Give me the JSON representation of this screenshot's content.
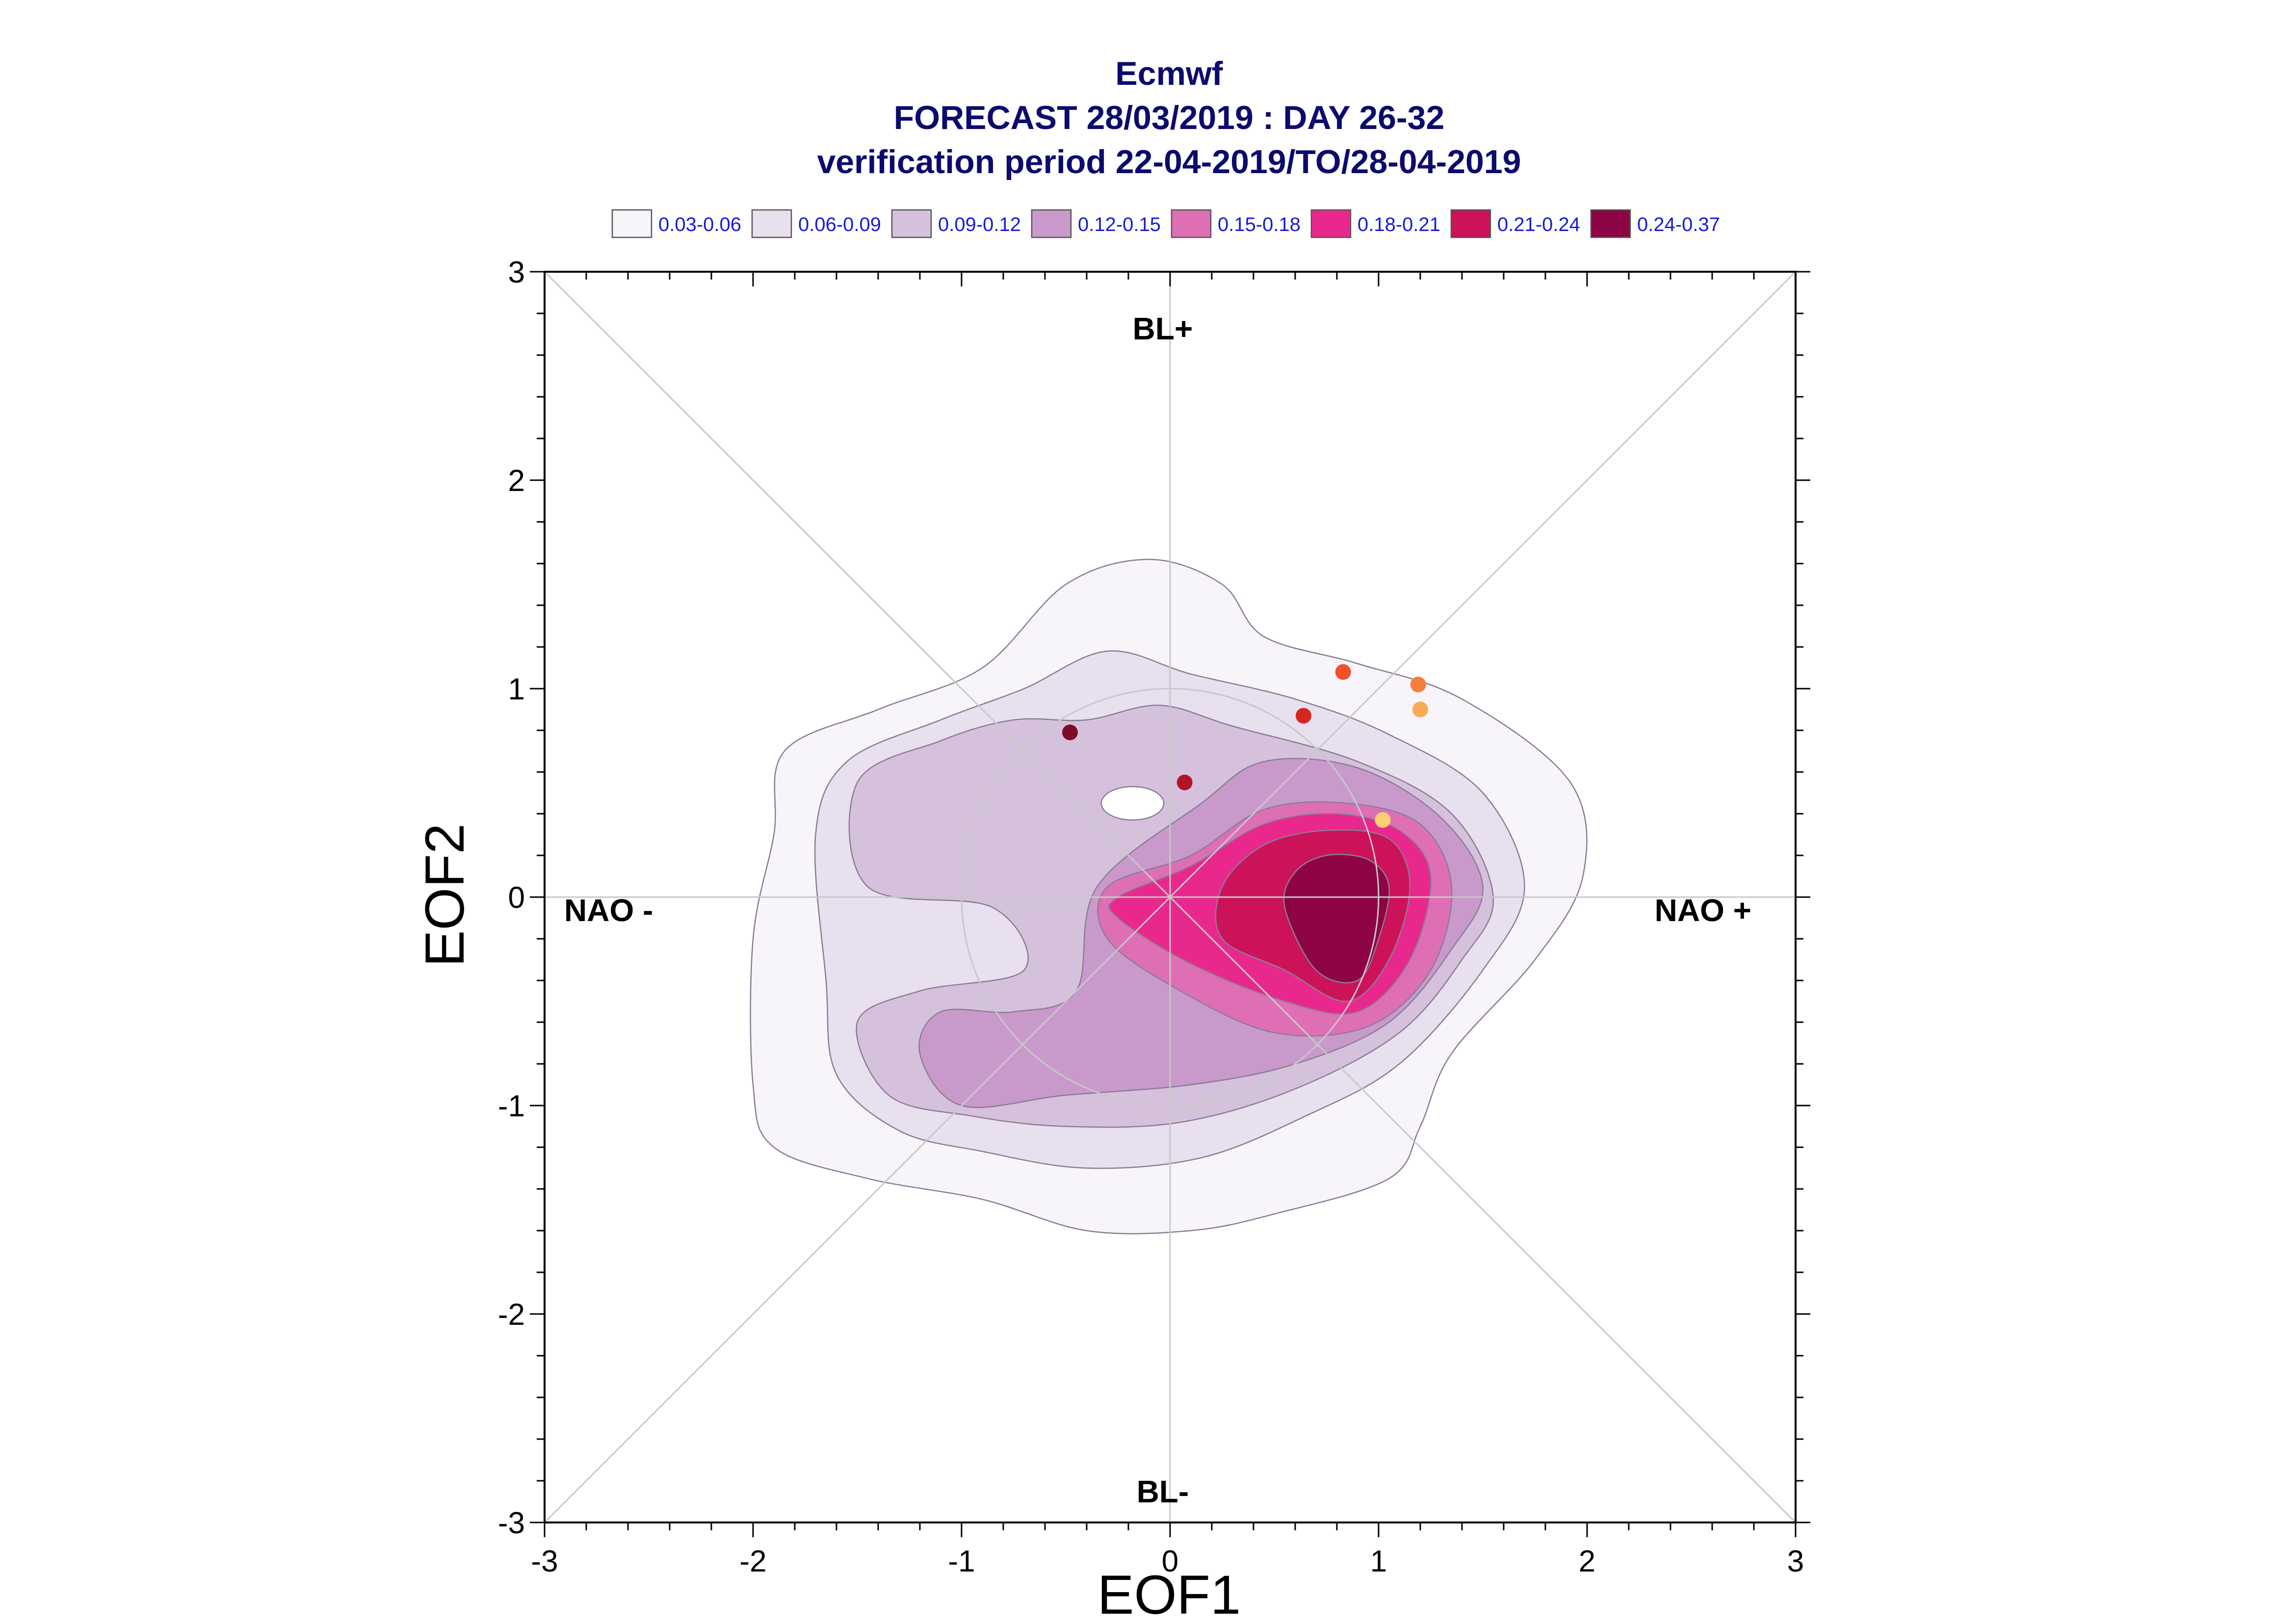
{
  "chart_data": {
    "type": "heatmap",
    "title": "Ecmwf",
    "subtitle_1": "FORECAST 28/03/2019 : DAY 26-32",
    "subtitle_2": "verification period 22-04-2019/TO/28-04-2019",
    "xlabel": "EOF1",
    "ylabel": "EOF2",
    "xlim": [
      -3,
      3
    ],
    "ylim": [
      -3,
      3
    ],
    "xticks": [
      "-3",
      "-2",
      "-1",
      "0",
      "1",
      "2",
      "3"
    ],
    "yticks": [
      "-3",
      "-2",
      "-1",
      "0",
      "1",
      "2",
      "3"
    ],
    "grid": false,
    "legend_position": "top",
    "legend": [
      {
        "label": "0.03-0.06",
        "color": "#f7f5fa"
      },
      {
        "label": "0.06-0.09",
        "color": "#e8e0ef"
      },
      {
        "label": "0.09-0.12",
        "color": "#d6c1dd"
      },
      {
        "label": "0.12-0.15",
        "color": "#c999cc"
      },
      {
        "label": "0.15-0.18",
        "color": "#df6fb4"
      },
      {
        "label": "0.18-0.21",
        "color": "#e9288e"
      },
      {
        "label": "0.21-0.24",
        "color": "#cc1259"
      },
      {
        "label": "0.24-0.37",
        "color": "#8e0444"
      }
    ],
    "regime_labels": {
      "top": "BL+",
      "bottom": "BL-",
      "left": "NAO -",
      "right": "NAO +"
    },
    "contours": [
      {
        "level": "0.03-0.06",
        "color": "#f7f5fa",
        "points": [
          [
            -2.0,
            -0.9
          ],
          [
            -1.9,
            -1.2
          ],
          [
            -1.45,
            -1.35
          ],
          [
            -0.9,
            -1.45
          ],
          [
            -0.4,
            -1.6
          ],
          [
            0.1,
            -1.6
          ],
          [
            0.5,
            -1.52
          ],
          [
            1.05,
            -1.35
          ],
          [
            1.2,
            -1.1
          ],
          [
            1.35,
            -0.75
          ],
          [
            1.75,
            -0.3
          ],
          [
            1.98,
            0.1
          ],
          [
            1.92,
            0.55
          ],
          [
            1.4,
            0.95
          ],
          [
            0.9,
            1.12
          ],
          [
            0.45,
            1.25
          ],
          [
            0.25,
            1.5
          ],
          [
            -0.1,
            1.62
          ],
          [
            -0.5,
            1.5
          ],
          [
            -0.9,
            1.1
          ],
          [
            -1.4,
            0.9
          ],
          [
            -1.85,
            0.7
          ],
          [
            -1.9,
            0.3
          ],
          [
            -2.0,
            -0.2
          ]
        ]
      },
      {
        "level": "0.06-0.09",
        "color": "#e8e0ef",
        "points": [
          [
            -1.65,
            -0.4
          ],
          [
            -1.6,
            -0.85
          ],
          [
            -1.3,
            -1.12
          ],
          [
            -0.9,
            -1.22
          ],
          [
            -0.4,
            -1.3
          ],
          [
            0.15,
            -1.25
          ],
          [
            0.65,
            -1.05
          ],
          [
            1.1,
            -0.8
          ],
          [
            1.5,
            -0.35
          ],
          [
            1.7,
            0.05
          ],
          [
            1.5,
            0.5
          ],
          [
            1.05,
            0.78
          ],
          [
            0.6,
            0.95
          ],
          [
            0.1,
            1.07
          ],
          [
            -0.3,
            1.18
          ],
          [
            -0.7,
            1.0
          ],
          [
            -1.1,
            0.85
          ],
          [
            -1.55,
            0.65
          ],
          [
            -1.7,
            0.3
          ]
        ]
      },
      {
        "level": "0.09-0.12",
        "color": "#d6c1dd",
        "points": [
          [
            -1.5,
            -0.6
          ],
          [
            -1.35,
            -0.95
          ],
          [
            -0.95,
            -1.05
          ],
          [
            -0.5,
            -1.1
          ],
          [
            0.05,
            -1.08
          ],
          [
            0.6,
            -0.92
          ],
          [
            1.1,
            -0.65
          ],
          [
            1.4,
            -0.3
          ],
          [
            1.55,
            0.0
          ],
          [
            1.35,
            0.4
          ],
          [
            0.9,
            0.65
          ],
          [
            0.3,
            0.82
          ],
          [
            -0.05,
            0.92
          ],
          [
            -0.4,
            0.85
          ],
          [
            -0.75,
            0.85
          ],
          [
            -1.1,
            0.75
          ],
          [
            -1.5,
            0.55
          ],
          [
            -1.45,
            0.05
          ],
          [
            -0.85,
            -0.05
          ],
          [
            -0.7,
            -0.35
          ],
          [
            -1.2,
            -0.45
          ]
        ]
      },
      {
        "level": "0.12-0.15",
        "color": "#c999cc",
        "points": [
          [
            -1.2,
            -0.75
          ],
          [
            -1.0,
            -1.0
          ],
          [
            -0.5,
            -0.95
          ],
          [
            0.1,
            -0.9
          ],
          [
            0.6,
            -0.8
          ],
          [
            1.05,
            -0.6
          ],
          [
            1.35,
            -0.25
          ],
          [
            1.5,
            0.05
          ],
          [
            1.3,
            0.38
          ],
          [
            0.9,
            0.62
          ],
          [
            0.45,
            0.65
          ],
          [
            0.15,
            0.45
          ],
          [
            -0.35,
            0.05
          ],
          [
            -0.45,
            -0.45
          ],
          [
            -0.75,
            -0.55
          ],
          [
            -1.1,
            -0.55
          ]
        ]
      },
      {
        "level": "0.15-0.18",
        "color": "#df6fb4",
        "points": [
          [
            -0.3,
            -0.2
          ],
          [
            0.05,
            -0.45
          ],
          [
            0.5,
            -0.65
          ],
          [
            0.95,
            -0.62
          ],
          [
            1.25,
            -0.35
          ],
          [
            1.35,
            0.05
          ],
          [
            1.2,
            0.35
          ],
          [
            0.85,
            0.45
          ],
          [
            0.45,
            0.42
          ],
          [
            0.1,
            0.2
          ],
          [
            -0.3,
            0.05
          ]
        ]
      },
      {
        "level": "0.18-0.21",
        "color": "#e9288e",
        "points": [
          [
            -0.25,
            -0.1
          ],
          [
            0.1,
            -0.32
          ],
          [
            0.55,
            -0.5
          ],
          [
            0.9,
            -0.55
          ],
          [
            1.15,
            -0.3
          ],
          [
            1.25,
            0.1
          ],
          [
            1.1,
            0.32
          ],
          [
            0.8,
            0.4
          ],
          [
            0.45,
            0.35
          ],
          [
            0.1,
            0.15
          ],
          [
            -0.25,
            0.0
          ]
        ]
      },
      {
        "level": "0.21-0.24",
        "color": "#cc1259",
        "points": [
          [
            0.25,
            -0.2
          ],
          [
            0.55,
            -0.35
          ],
          [
            0.85,
            -0.5
          ],
          [
            1.05,
            -0.3
          ],
          [
            1.15,
            0.05
          ],
          [
            1.05,
            0.28
          ],
          [
            0.75,
            0.32
          ],
          [
            0.45,
            0.25
          ],
          [
            0.25,
            0.05
          ]
        ]
      },
      {
        "level": "0.24-0.37",
        "color": "#8e0444",
        "points": [
          [
            0.55,
            -0.05
          ],
          [
            0.7,
            -0.35
          ],
          [
            0.9,
            -0.4
          ],
          [
            1.0,
            -0.2
          ],
          [
            1.05,
            0.05
          ],
          [
            0.95,
            0.18
          ],
          [
            0.75,
            0.2
          ],
          [
            0.6,
            0.12
          ]
        ]
      }
    ],
    "hole": {
      "x": -0.18,
      "y": 0.45,
      "rx": 0.15,
      "ry": 0.08
    },
    "points": [
      {
        "x": -0.48,
        "y": 0.79,
        "color": "#7f0a2a"
      },
      {
        "x": 0.07,
        "y": 0.55,
        "color": "#b3132b"
      },
      {
        "x": 0.64,
        "y": 0.87,
        "color": "#d7261f"
      },
      {
        "x": 0.83,
        "y": 1.08,
        "color": "#f0502a"
      },
      {
        "x": 1.19,
        "y": 1.02,
        "color": "#f47e3a"
      },
      {
        "x": 1.2,
        "y": 0.9,
        "color": "#f8aa55"
      },
      {
        "x": 1.02,
        "y": 0.37,
        "color": "#fcd070"
      }
    ]
  }
}
